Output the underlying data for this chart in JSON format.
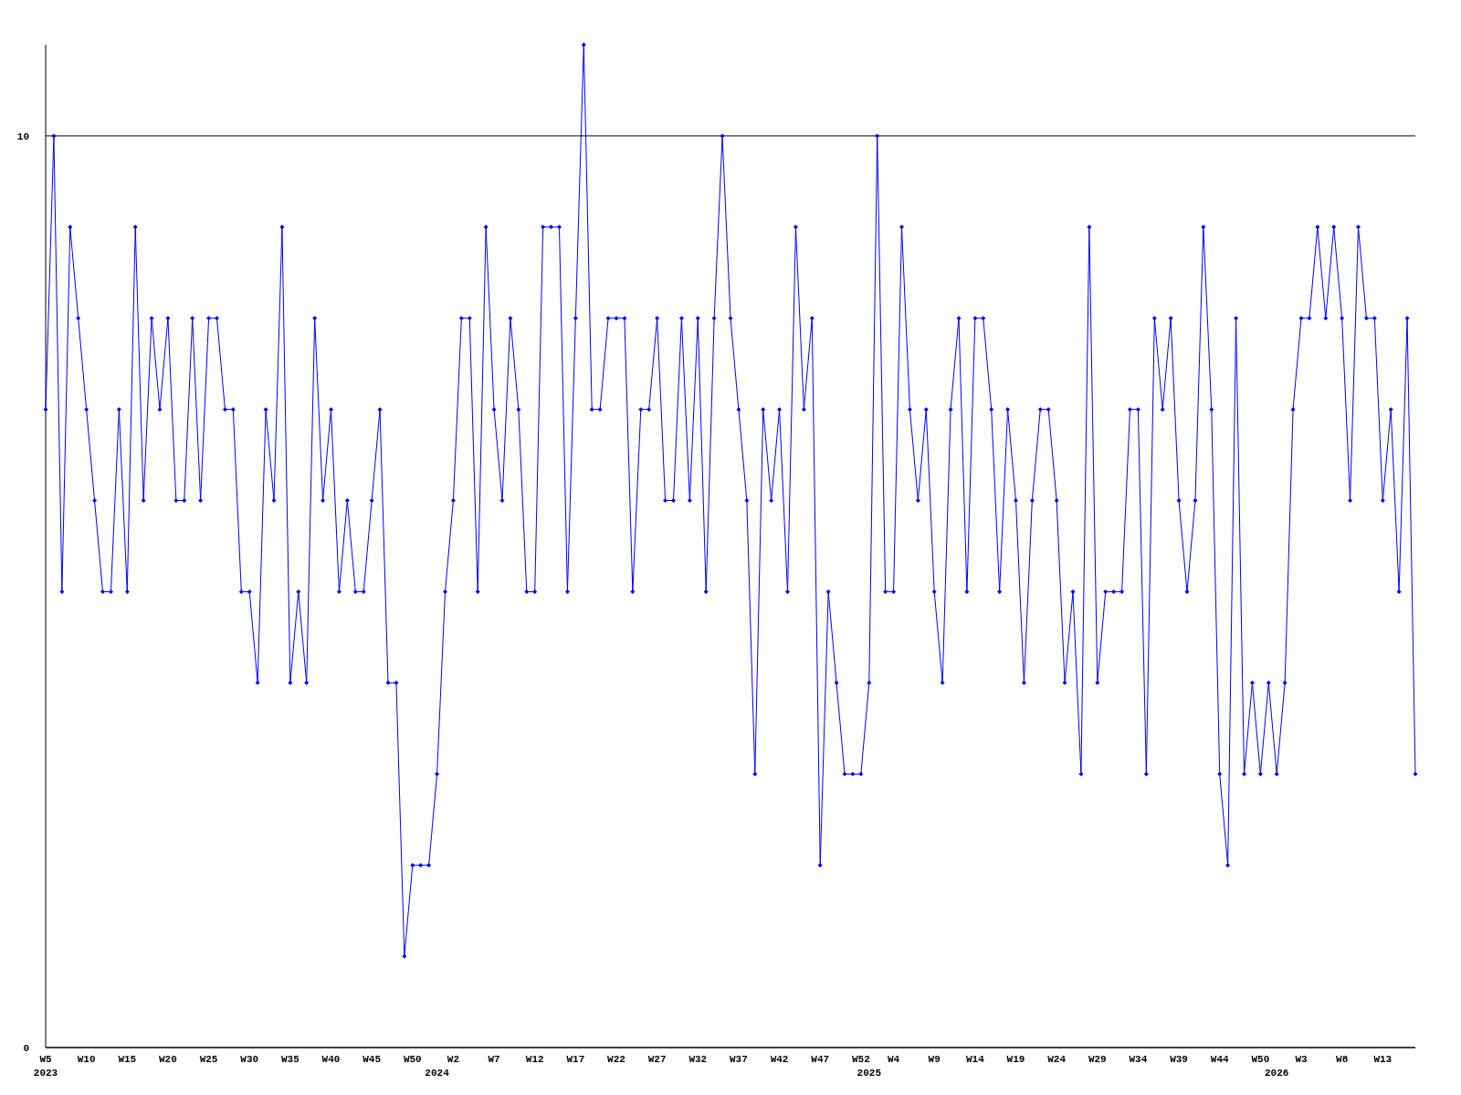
{
  "chart_data": {
    "type": "line",
    "categories": [
      "W5\n2023",
      null,
      null,
      null,
      null,
      "W10",
      null,
      null,
      null,
      null,
      "W15",
      null,
      null,
      null,
      null,
      "W20",
      null,
      null,
      null,
      null,
      "W25",
      null,
      null,
      null,
      null,
      "W30",
      null,
      null,
      null,
      null,
      "W35",
      null,
      null,
      null,
      null,
      "W40",
      null,
      null,
      null,
      null,
      "W45",
      null,
      null,
      null,
      null,
      "W50",
      null,
      null,
      "\n2024",
      null,
      "W2",
      null,
      null,
      null,
      null,
      "W7",
      null,
      null,
      null,
      null,
      "W12",
      null,
      null,
      null,
      null,
      "W17",
      null,
      null,
      null,
      null,
      "W22",
      null,
      null,
      null,
      null,
      "W27",
      null,
      null,
      null,
      null,
      "W32",
      null,
      null,
      null,
      null,
      "W37",
      null,
      null,
      null,
      null,
      "W42",
      null,
      null,
      null,
      null,
      "W47",
      null,
      null,
      null,
      null,
      "W52",
      "\n2025",
      null,
      null,
      "W4",
      null,
      null,
      null,
      null,
      "W9",
      null,
      null,
      null,
      null,
      "W14",
      null,
      null,
      null,
      null,
      "W19",
      null,
      null,
      null,
      null,
      "W24",
      null,
      null,
      null,
      null,
      "W29",
      null,
      null,
      null,
      null,
      "W34",
      null,
      null,
      null,
      null,
      "W39",
      null,
      null,
      null,
      null,
      "W44",
      null,
      null,
      null,
      null,
      "W50",
      null,
      "\n2026",
      null,
      null,
      "W3",
      null,
      null,
      null,
      null,
      "W8",
      null,
      null,
      null,
      null,
      "W13",
      null,
      null,
      null,
      null
    ],
    "series": [
      {
        "color": "#0000ff",
        "values": [
          7,
          10,
          5,
          9,
          8,
          7,
          6,
          5,
          5,
          7,
          5,
          9,
          6,
          8,
          7,
          8,
          6,
          6,
          8,
          6,
          8,
          8,
          7,
          7,
          5,
          5,
          4,
          7,
          6,
          9,
          4,
          5,
          4,
          8,
          6,
          7,
          5,
          6,
          5,
          5,
          6,
          7,
          4,
          4,
          1,
          2,
          2,
          2,
          3,
          5,
          6,
          8,
          8,
          5,
          9,
          7,
          6,
          8,
          7,
          5,
          5,
          9,
          9,
          9,
          5,
          8,
          11,
          7,
          7,
          8,
          8,
          8,
          5,
          7,
          7,
          8,
          6,
          6,
          8,
          6,
          8,
          5,
          8,
          10,
          8,
          7,
          6,
          3,
          7,
          6,
          7,
          5,
          9,
          7,
          8,
          2,
          5,
          4,
          3,
          3,
          3,
          4,
          10,
          5,
          5,
          9,
          7,
          6,
          7,
          5,
          4,
          7,
          8,
          5,
          8,
          8,
          7,
          5,
          7,
          6,
          4,
          6,
          7,
          7,
          6,
          4,
          5,
          3,
          9,
          4,
          5,
          5,
          5,
          7,
          7,
          3,
          8,
          7,
          8,
          6,
          5,
          6,
          9,
          7,
          3,
          2,
          8,
          3,
          4,
          3,
          4,
          3,
          4,
          7,
          8,
          8,
          9,
          8,
          9,
          8,
          6,
          9,
          8,
          8,
          6,
          7,
          5,
          8,
          3
        ]
      }
    ],
    "ylim": [
      0,
      11
    ],
    "yticks": [
      0,
      10
    ],
    "grid": "y",
    "marker": "diamond"
  }
}
